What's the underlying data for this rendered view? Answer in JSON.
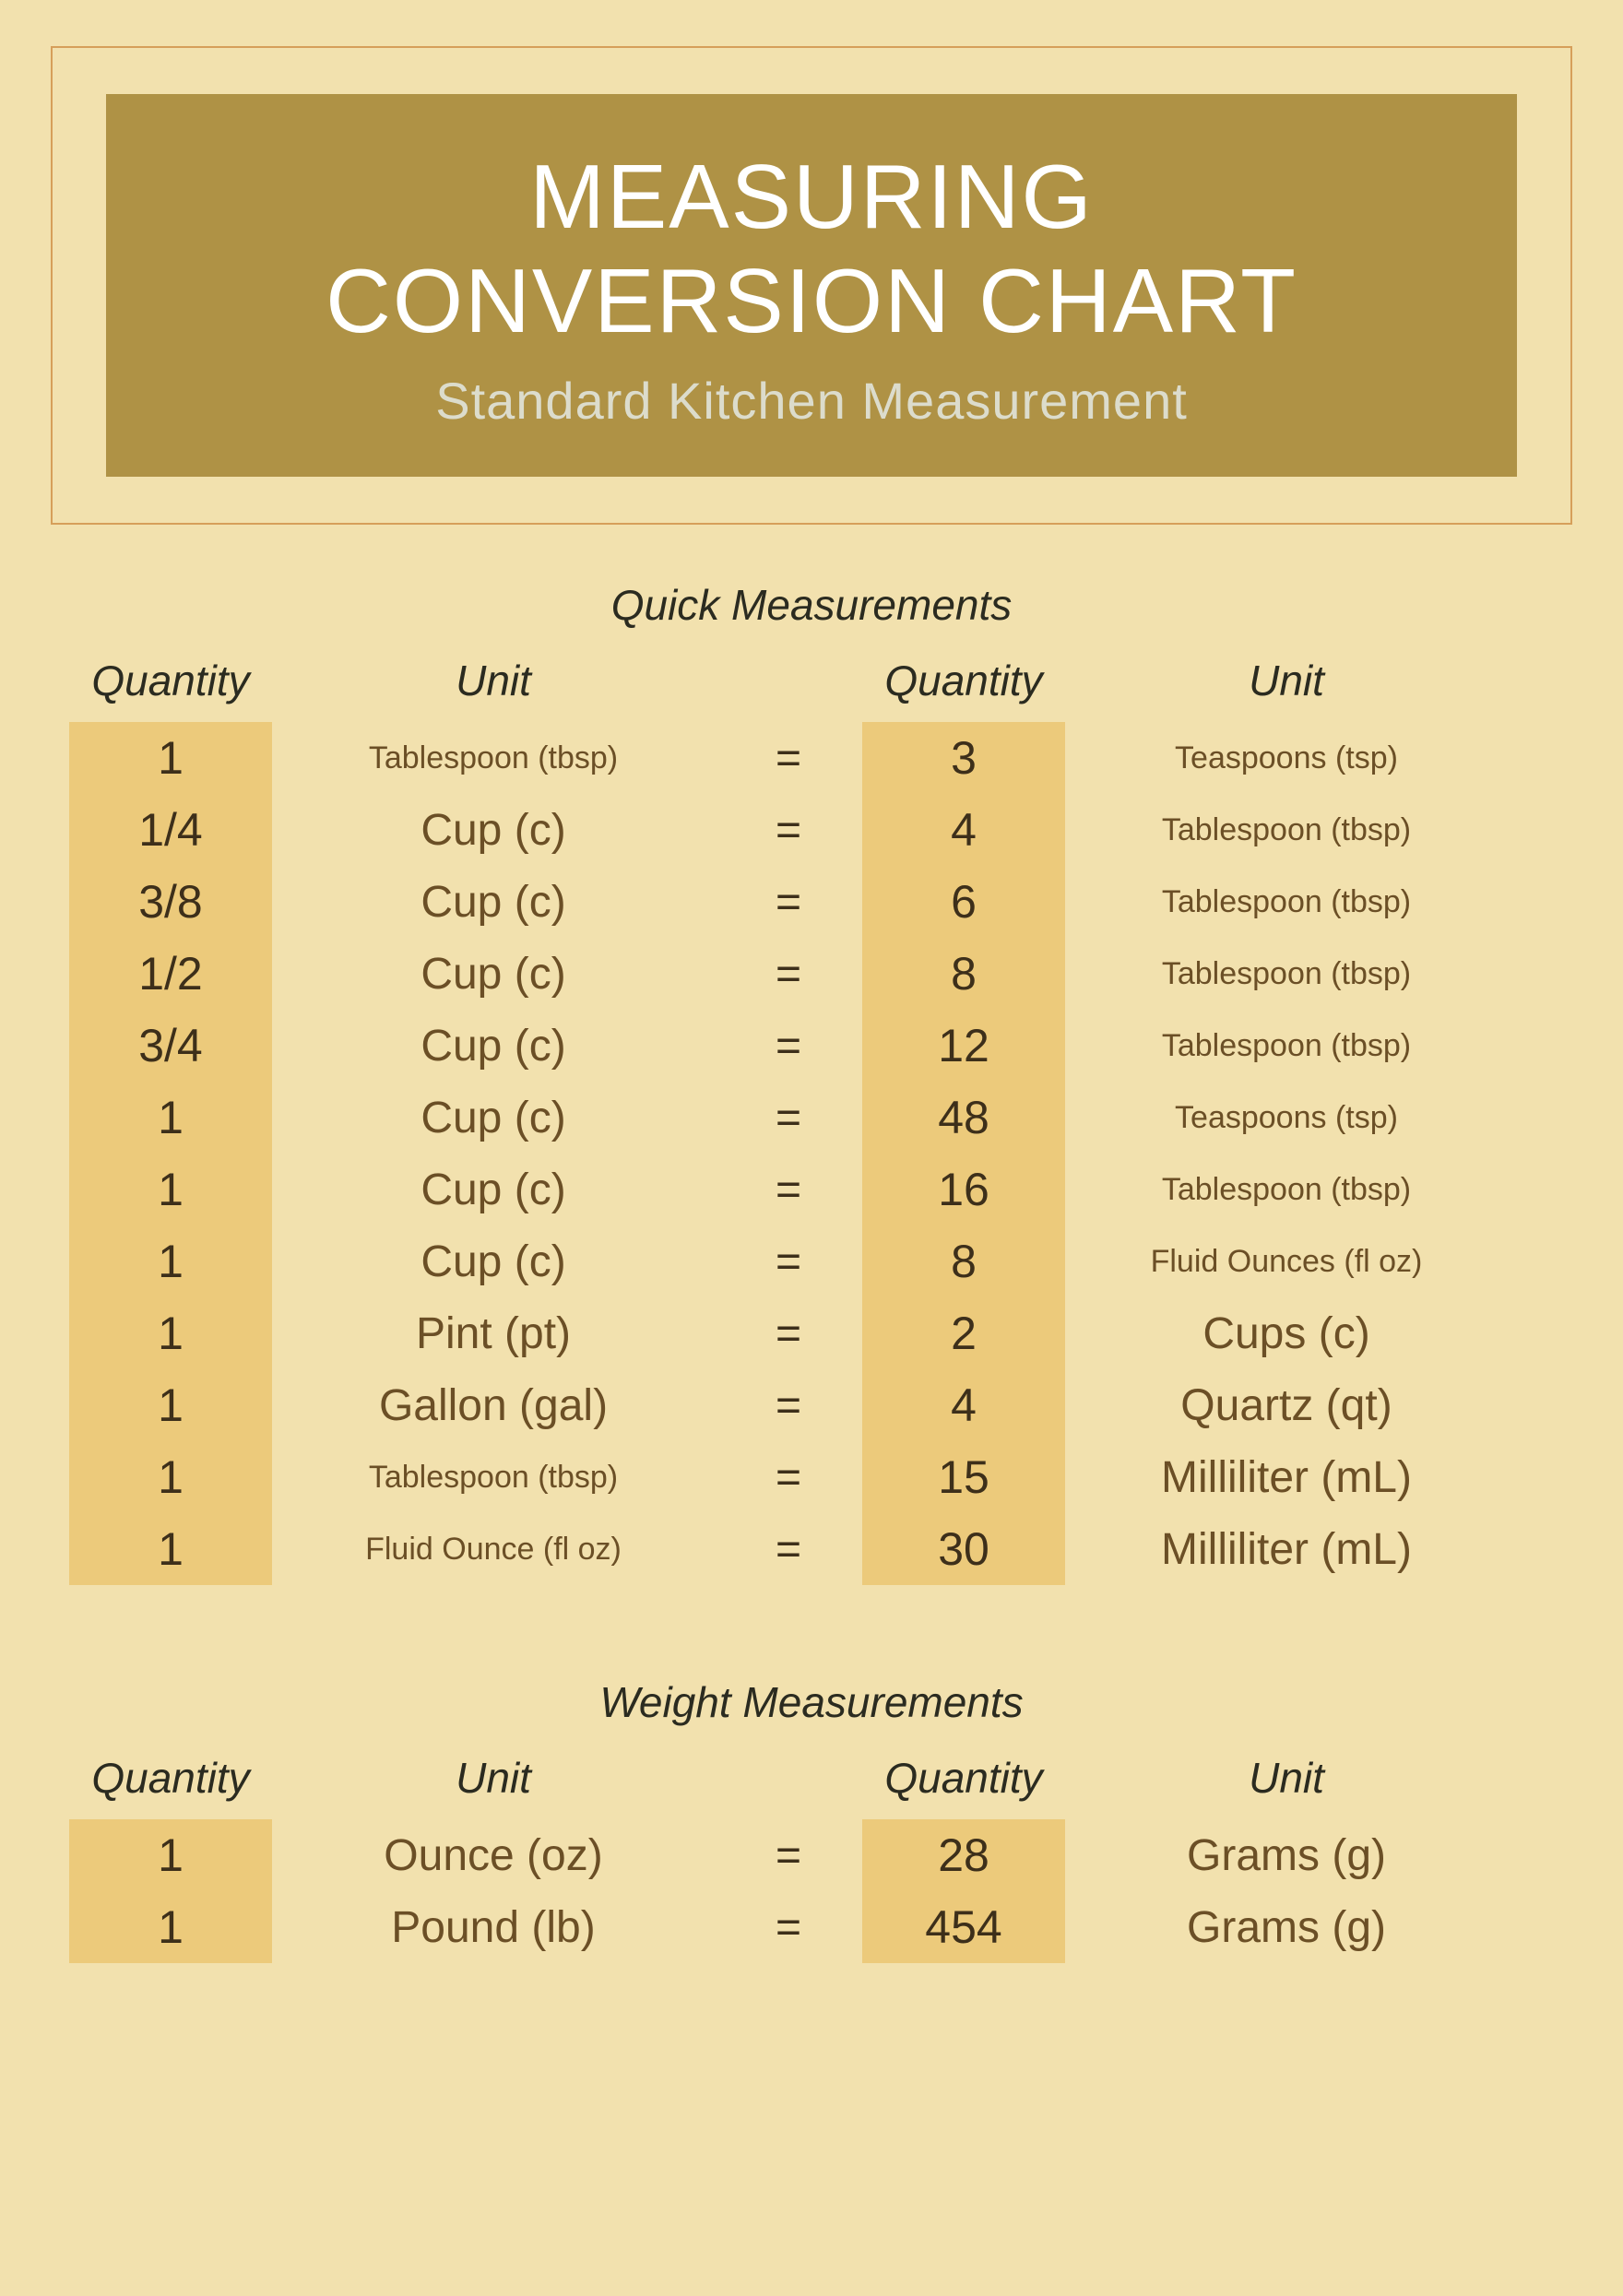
{
  "colors": {
    "page_bg": "#f2e1ae",
    "frame_border": "#d69f5a",
    "title_bg": "#af9245",
    "title_text": "#ffffff",
    "subtitle_text": "#dcdccc",
    "qty_cell_bg": "#ecca7b",
    "unit_text": "#6b4f26",
    "body_text": "#2b2b20"
  },
  "header": {
    "title_line1": "MEASURING",
    "title_line2": "CONVERSION CHART",
    "subtitle": "Standard Kitchen Measurement"
  },
  "quick": {
    "title": "Quick Measurements",
    "headers": {
      "qty": "Quantity",
      "unit": "Unit"
    },
    "rows": [
      {
        "q1": "1",
        "u1": "Tablespoon (tbsp)",
        "u1_size": "small",
        "q2": "3",
        "u2": "Teaspoons (tsp)",
        "u2_size": "small"
      },
      {
        "q1": "1/4",
        "u1": "Cup (c)",
        "u1_size": "large",
        "q2": "4",
        "u2": "Tablespoon (tbsp)",
        "u2_size": "small"
      },
      {
        "q1": "3/8",
        "u1": "Cup (c)",
        "u1_size": "large",
        "q2": "6",
        "u2": "Tablespoon (tbsp)",
        "u2_size": "small"
      },
      {
        "q1": "1/2",
        "u1": "Cup (c)",
        "u1_size": "large",
        "q2": "8",
        "u2": "Tablespoon (tbsp)",
        "u2_size": "small"
      },
      {
        "q1": "3/4",
        "u1": "Cup (c)",
        "u1_size": "large",
        "q2": "12",
        "u2": "Tablespoon (tbsp)",
        "u2_size": "small"
      },
      {
        "q1": "1",
        "u1": "Cup (c)",
        "u1_size": "large",
        "q2": "48",
        "u2": "Teaspoons (tsp)",
        "u2_size": "small"
      },
      {
        "q1": "1",
        "u1": "Cup (c)",
        "u1_size": "large",
        "q2": "16",
        "u2": "Tablespoon (tbsp)",
        "u2_size": "small"
      },
      {
        "q1": "1",
        "u1": "Cup (c)",
        "u1_size": "large",
        "q2": "8",
        "u2": "Fluid Ounces (fl oz)",
        "u2_size": "small"
      },
      {
        "q1": "1",
        "u1": "Pint (pt)",
        "u1_size": "large",
        "q2": "2",
        "u2": "Cups (c)",
        "u2_size": "large"
      },
      {
        "q1": "1",
        "u1": "Gallon (gal)",
        "u1_size": "large",
        "q2": "4",
        "u2": "Quartz (qt)",
        "u2_size": "large"
      },
      {
        "q1": "1",
        "u1": "Tablespoon (tbsp)",
        "u1_size": "small",
        "q2": "15",
        "u2": "Milliliter (mL)",
        "u2_size": "large"
      },
      {
        "q1": "1",
        "u1": "Fluid Ounce (fl oz)",
        "u1_size": "small",
        "q2": "30",
        "u2": "Milliliter (mL)",
        "u2_size": "large"
      }
    ]
  },
  "weight": {
    "title": "Weight Measurements",
    "headers": {
      "qty": "Quantity",
      "unit": "Unit"
    },
    "rows": [
      {
        "q1": "1",
        "u1": "Ounce (oz)",
        "u1_size": "large",
        "q2": "28",
        "u2": "Grams (g)",
        "u2_size": "large"
      },
      {
        "q1": "1",
        "u1": "Pound (lb)",
        "u1_size": "large",
        "q2": "454",
        "u2": "Grams (g)",
        "u2_size": "large"
      }
    ]
  },
  "equals": "="
}
